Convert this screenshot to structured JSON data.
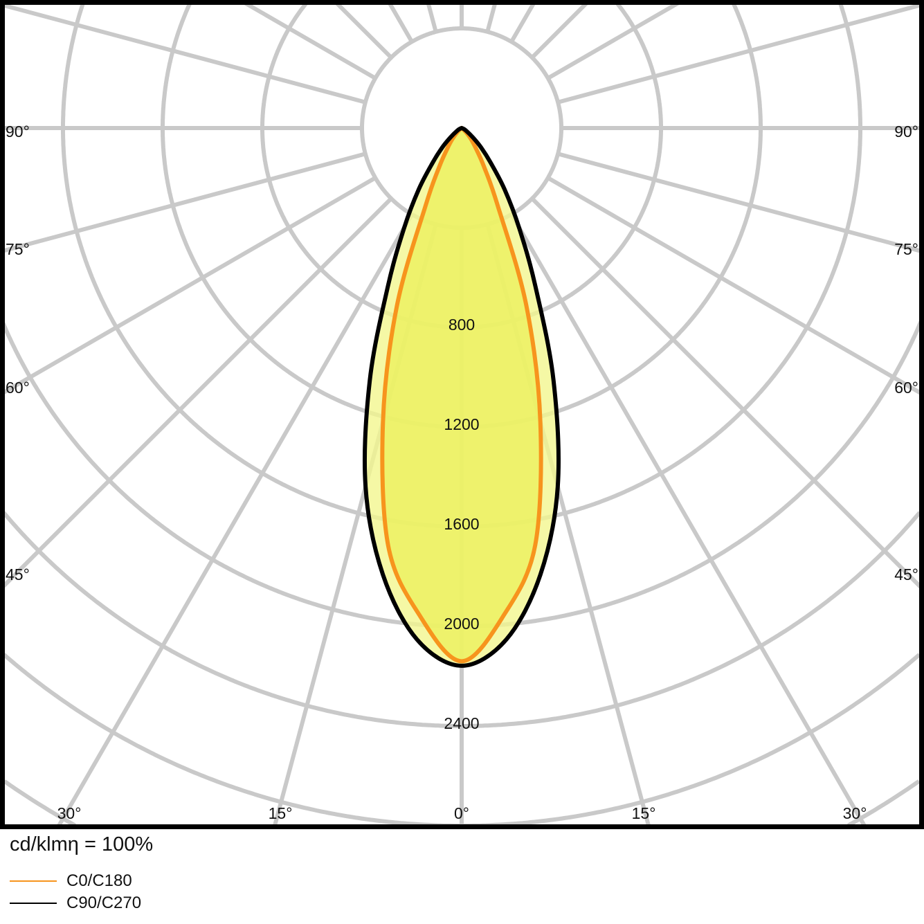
{
  "chart_data": {
    "type": "polar",
    "unit_label": "cd/klmη = 100%",
    "radial_ticks": [
      800,
      1200,
      1600,
      2000,
      2400
    ],
    "radial_step": 400,
    "angle_labels": {
      "left": [
        "90°",
        "75°",
        "60°",
        "45°"
      ],
      "right": [
        "90°",
        "75°",
        "60°",
        "45°"
      ],
      "bottom": [
        "30°",
        "15°",
        "0°",
        "15°",
        "30°"
      ]
    },
    "angle_grid_step_deg": 15,
    "grid": true,
    "legend_placement": "bottom-left",
    "gamma_deg": [
      0,
      5,
      10,
      15,
      20,
      25,
      30,
      35,
      40,
      45,
      50,
      60,
      70,
      80,
      90
    ],
    "series": [
      {
        "name": "C0/C180",
        "color": "#f7941d",
        "fill": "#ebf05a",
        "values": [
          2140,
          1960,
          1700,
          1220,
          760,
          340,
          180,
          100,
          60,
          30,
          10,
          0,
          0,
          0,
          0
        ]
      },
      {
        "name": "C90/C270",
        "color": "#000000",
        "fill": "#f3f68f",
        "values": [
          2158,
          2060,
          1820,
          1490,
          1078,
          700,
          460,
          300,
          180,
          110,
          60,
          20,
          5,
          0,
          0
        ]
      }
    ]
  }
}
